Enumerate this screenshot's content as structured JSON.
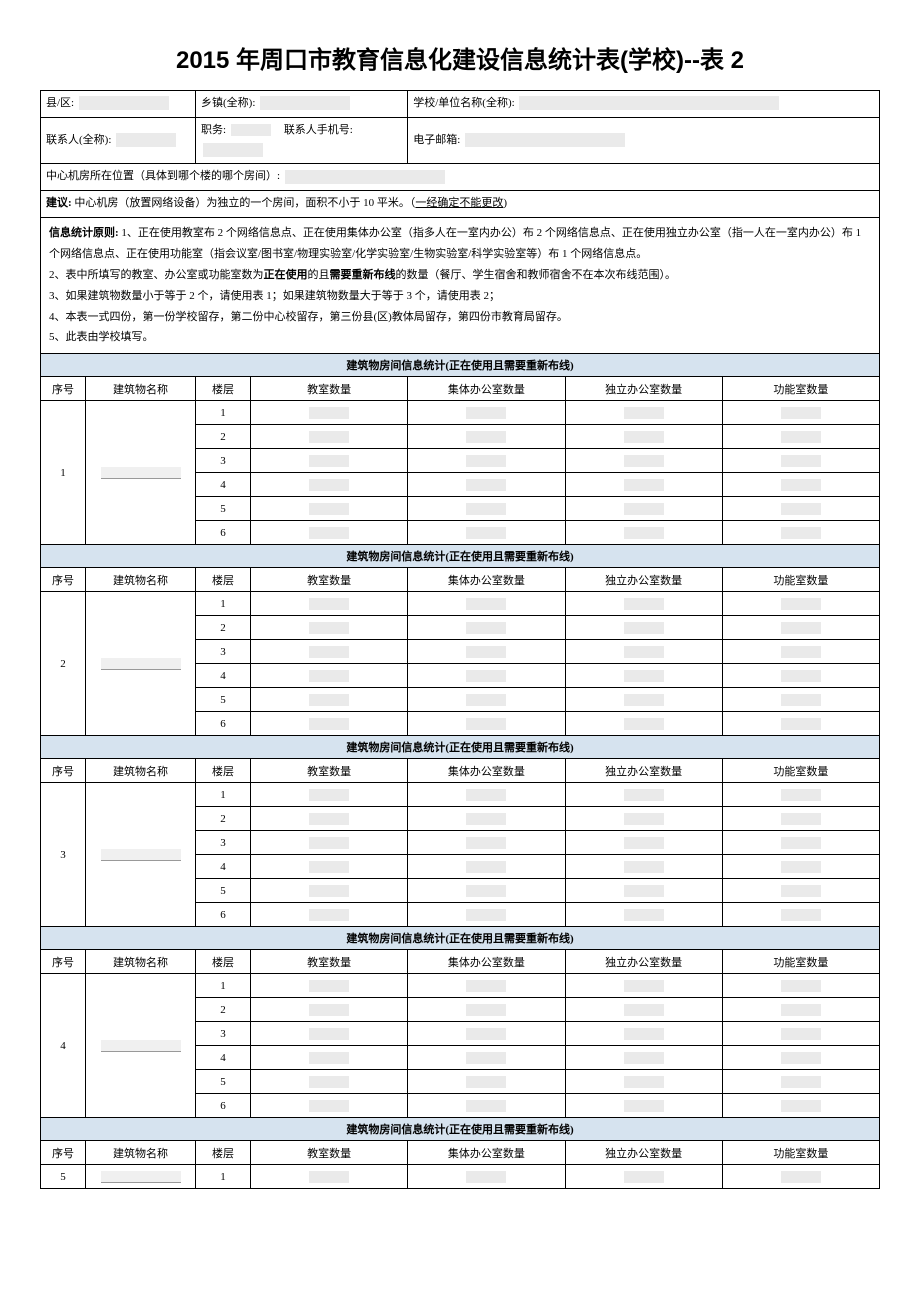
{
  "title": "2015 年周口市教育信息化建设信息统计表(学校)--表 2",
  "info": {
    "county_label": "县/区:",
    "town_label": "乡镇(全称):",
    "school_label": "学校/单位名称(全称):",
    "contact_label": "联系人(全称):",
    "position_label": "职务:",
    "phone_label": "联系人手机号:",
    "email_label": "电子邮箱:",
    "room_label": "中心机房所在位置（具体到哪个楼的哪个房间）:",
    "suggest_label": "建议:",
    "suggest_text": "中心机房（放置网络设备）为独立的一个房间，面积不小于 10 平米。（",
    "suggest_underline": "一经确定不能更改",
    "suggest_end": ")"
  },
  "notes": {
    "p1_label": "信息统计原则:",
    "p1": "1、正在使用教室布 2 个网络信息点、正在使用集体办公室（指多人在一室内办公）布 2 个网络信息点、正在使用独立办公室（指一人在一室内办公）布 1 个网络信息点、正在使用功能室（指会议室/图书室/物理实验室/化学实验室/生物实验室/科学实验室等）布 1 个网络信息点。",
    "p2_a": "2、表中所填写的教室、办公室或功能室数为",
    "p2_b": "正在使用",
    "p2_c": "的且",
    "p2_d": "需要重新布线",
    "p2_e": "的数量（餐厅、学生宿舍和教师宿舍不在本次布线范围）。",
    "p3": "3、如果建筑物数量小于等于 2 个，请使用表 1；如果建筑物数量大于等于 3 个，请使用表 2；",
    "p4": "4、本表一式四份，第一份学校留存，第二份中心校留存，第三份县(区)教体局留存，第四份市教育局留存。",
    "p5": "5、此表由学校填写。"
  },
  "section_header": "建筑物房间信息统计(正在使用且需要重新布线)",
  "columns": {
    "seq": "序号",
    "name": "建筑物名称",
    "floor": "楼层",
    "classroom": "教室数量",
    "group_office": "集体办公室数量",
    "single_office": "独立办公室数量",
    "function_room": "功能室数量"
  },
  "buildings": [
    {
      "seq": "1",
      "floors": [
        "1",
        "2",
        "3",
        "4",
        "5",
        "6"
      ]
    },
    {
      "seq": "2",
      "floors": [
        "1",
        "2",
        "3",
        "4",
        "5",
        "6"
      ]
    },
    {
      "seq": "3",
      "floors": [
        "1",
        "2",
        "3",
        "4",
        "5",
        "6"
      ]
    },
    {
      "seq": "4",
      "floors": [
        "1",
        "2",
        "3",
        "4",
        "5",
        "6"
      ]
    },
    {
      "seq": "5",
      "floors": [
        "1"
      ]
    }
  ]
}
